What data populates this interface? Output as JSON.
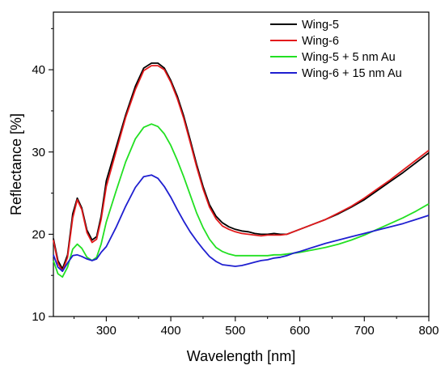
{
  "chart_data": {
    "type": "line",
    "title": "",
    "xlabel": "Wavelength [nm]",
    "ylabel": "Reflectance [%]",
    "xlim": [
      218,
      800
    ],
    "ylim": [
      10,
      47
    ],
    "x_ticks": [
      300,
      400,
      500,
      600,
      700,
      800
    ],
    "y_ticks": [
      10,
      20,
      30,
      40
    ],
    "grid": false,
    "legend_position": "top-right",
    "series": [
      {
        "name": "Wing-5",
        "color": "#000000",
        "points": [
          [
            218,
            19.5
          ],
          [
            225,
            16.8
          ],
          [
            232,
            15.8
          ],
          [
            240,
            17.5
          ],
          [
            248,
            22.5
          ],
          [
            255,
            24.4
          ],
          [
            262,
            23.2
          ],
          [
            270,
            20.5
          ],
          [
            278,
            19.3
          ],
          [
            285,
            19.7
          ],
          [
            292,
            22.2
          ],
          [
            300,
            26.5
          ],
          [
            315,
            30.5
          ],
          [
            330,
            34.5
          ],
          [
            345,
            38.0
          ],
          [
            358,
            40.2
          ],
          [
            370,
            40.8
          ],
          [
            380,
            40.8
          ],
          [
            390,
            40.2
          ],
          [
            400,
            38.7
          ],
          [
            410,
            36.8
          ],
          [
            420,
            34.4
          ],
          [
            430,
            31.5
          ],
          [
            440,
            28.5
          ],
          [
            450,
            25.8
          ],
          [
            460,
            23.6
          ],
          [
            470,
            22.2
          ],
          [
            480,
            21.4
          ],
          [
            490,
            20.9
          ],
          [
            500,
            20.6
          ],
          [
            510,
            20.4
          ],
          [
            520,
            20.3
          ],
          [
            530,
            20.1
          ],
          [
            540,
            20.0
          ],
          [
            550,
            20.0
          ],
          [
            560,
            20.1
          ],
          [
            570,
            20.0
          ],
          [
            580,
            20.0
          ],
          [
            590,
            20.3
          ],
          [
            600,
            20.6
          ],
          [
            620,
            21.2
          ],
          [
            640,
            21.8
          ],
          [
            660,
            22.5
          ],
          [
            680,
            23.3
          ],
          [
            700,
            24.2
          ],
          [
            720,
            25.3
          ],
          [
            740,
            26.4
          ],
          [
            760,
            27.5
          ],
          [
            780,
            28.7
          ],
          [
            800,
            29.9
          ]
        ]
      },
      {
        "name": "Wing-6",
        "color": "#e31a1c",
        "points": [
          [
            218,
            19.3
          ],
          [
            225,
            16.5
          ],
          [
            232,
            15.5
          ],
          [
            240,
            17.2
          ],
          [
            248,
            22.0
          ],
          [
            255,
            24.2
          ],
          [
            262,
            23.0
          ],
          [
            270,
            20.2
          ],
          [
            278,
            19.0
          ],
          [
            285,
            19.4
          ],
          [
            292,
            21.8
          ],
          [
            300,
            25.8
          ],
          [
            315,
            30.0
          ],
          [
            330,
            34.2
          ],
          [
            345,
            37.6
          ],
          [
            358,
            39.9
          ],
          [
            370,
            40.5
          ],
          [
            380,
            40.5
          ],
          [
            390,
            40.0
          ],
          [
            400,
            38.5
          ],
          [
            410,
            36.5
          ],
          [
            420,
            34.1
          ],
          [
            430,
            31.2
          ],
          [
            440,
            28.2
          ],
          [
            450,
            25.5
          ],
          [
            460,
            23.3
          ],
          [
            470,
            21.9
          ],
          [
            480,
            21.0
          ],
          [
            490,
            20.6
          ],
          [
            500,
            20.3
          ],
          [
            510,
            20.1
          ],
          [
            520,
            20.0
          ],
          [
            530,
            19.9
          ],
          [
            540,
            19.8
          ],
          [
            550,
            19.9
          ],
          [
            560,
            19.9
          ],
          [
            570,
            19.9
          ],
          [
            580,
            20.0
          ],
          [
            590,
            20.3
          ],
          [
            600,
            20.6
          ],
          [
            620,
            21.2
          ],
          [
            640,
            21.8
          ],
          [
            660,
            22.6
          ],
          [
            680,
            23.4
          ],
          [
            700,
            24.4
          ],
          [
            720,
            25.5
          ],
          [
            740,
            26.6
          ],
          [
            760,
            27.8
          ],
          [
            780,
            29.0
          ],
          [
            800,
            30.2
          ]
        ]
      },
      {
        "name": "Wing-5 + 5 nm Au",
        "color": "#22e022",
        "points": [
          [
            218,
            16.8
          ],
          [
            225,
            15.2
          ],
          [
            232,
            14.8
          ],
          [
            240,
            16.0
          ],
          [
            248,
            18.2
          ],
          [
            255,
            18.8
          ],
          [
            262,
            18.3
          ],
          [
            270,
            17.2
          ],
          [
            278,
            16.8
          ],
          [
            285,
            17.2
          ],
          [
            292,
            18.8
          ],
          [
            300,
            21.5
          ],
          [
            315,
            25.2
          ],
          [
            330,
            28.8
          ],
          [
            345,
            31.6
          ],
          [
            358,
            33.0
          ],
          [
            370,
            33.4
          ],
          [
            380,
            33.1
          ],
          [
            390,
            32.2
          ],
          [
            400,
            30.8
          ],
          [
            410,
            29.0
          ],
          [
            420,
            27.0
          ],
          [
            430,
            24.8
          ],
          [
            440,
            22.6
          ],
          [
            450,
            20.8
          ],
          [
            460,
            19.4
          ],
          [
            470,
            18.4
          ],
          [
            480,
            17.9
          ],
          [
            490,
            17.6
          ],
          [
            500,
            17.4
          ],
          [
            510,
            17.4
          ],
          [
            520,
            17.4
          ],
          [
            530,
            17.4
          ],
          [
            540,
            17.4
          ],
          [
            550,
            17.4
          ],
          [
            560,
            17.5
          ],
          [
            570,
            17.5
          ],
          [
            580,
            17.6
          ],
          [
            590,
            17.7
          ],
          [
            600,
            17.8
          ],
          [
            620,
            18.1
          ],
          [
            640,
            18.4
          ],
          [
            660,
            18.8
          ],
          [
            680,
            19.3
          ],
          [
            700,
            19.9
          ],
          [
            720,
            20.6
          ],
          [
            740,
            21.3
          ],
          [
            760,
            22.0
          ],
          [
            780,
            22.8
          ],
          [
            800,
            23.7
          ]
        ]
      },
      {
        "name": "Wing-6 + 15 nm Au",
        "color": "#1f1fd0",
        "points": [
          [
            218,
            17.5
          ],
          [
            225,
            16.0
          ],
          [
            232,
            15.5
          ],
          [
            240,
            16.5
          ],
          [
            248,
            17.4
          ],
          [
            255,
            17.5
          ],
          [
            262,
            17.3
          ],
          [
            270,
            17.0
          ],
          [
            278,
            16.8
          ],
          [
            285,
            17.0
          ],
          [
            292,
            17.8
          ],
          [
            300,
            18.5
          ],
          [
            315,
            20.8
          ],
          [
            330,
            23.4
          ],
          [
            345,
            25.7
          ],
          [
            358,
            27.0
          ],
          [
            370,
            27.2
          ],
          [
            380,
            26.8
          ],
          [
            390,
            25.8
          ],
          [
            400,
            24.5
          ],
          [
            410,
            23.0
          ],
          [
            420,
            21.6
          ],
          [
            430,
            20.3
          ],
          [
            440,
            19.2
          ],
          [
            450,
            18.2
          ],
          [
            460,
            17.3
          ],
          [
            470,
            16.7
          ],
          [
            480,
            16.3
          ],
          [
            490,
            16.2
          ],
          [
            500,
            16.1
          ],
          [
            510,
            16.2
          ],
          [
            520,
            16.4
          ],
          [
            530,
            16.6
          ],
          [
            540,
            16.8
          ],
          [
            550,
            16.9
          ],
          [
            560,
            17.1
          ],
          [
            570,
            17.2
          ],
          [
            580,
            17.4
          ],
          [
            590,
            17.7
          ],
          [
            600,
            17.9
          ],
          [
            620,
            18.4
          ],
          [
            640,
            18.9
          ],
          [
            660,
            19.3
          ],
          [
            680,
            19.7
          ],
          [
            700,
            20.1
          ],
          [
            720,
            20.5
          ],
          [
            740,
            20.9
          ],
          [
            760,
            21.3
          ],
          [
            780,
            21.8
          ],
          [
            800,
            22.3
          ]
        ]
      }
    ]
  }
}
